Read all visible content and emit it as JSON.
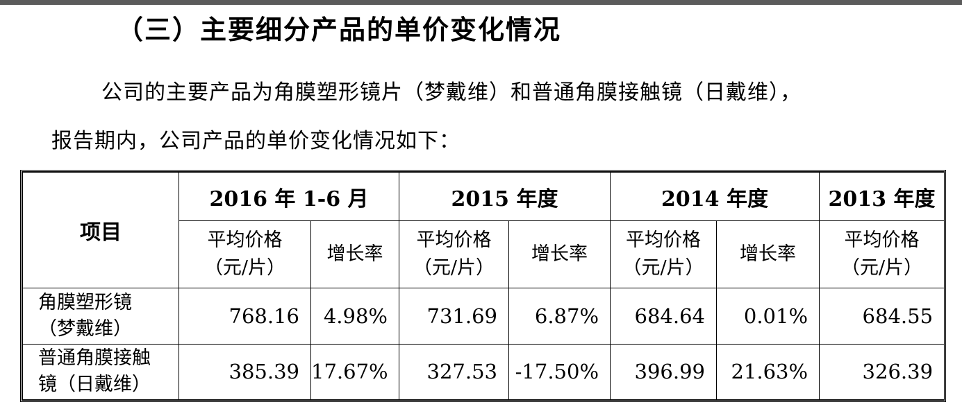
{
  "heading": "（三）主要细分产品的单价变化情况",
  "paragraph": {
    "line1": "公司的主要产品为角膜塑形镜片（梦戴维）和普通角膜接触镜（日戴维），",
    "line2": "报告期内，公司产品的单价变化情况如下："
  },
  "table": {
    "item_header": "项目",
    "periods": [
      "2016 年 1-6 月",
      "2015 年度",
      "2014 年度",
      "2013 年度"
    ],
    "price_header": {
      "line1": "平均价格",
      "line2": "（元/片）"
    },
    "growth_header": "增长率",
    "rows": [
      {
        "label_line1": "角膜塑形镜",
        "label_line2": "（梦戴维）",
        "values": [
          "768.16",
          "4.98%",
          "731.69",
          "6.87%",
          "684.64",
          "0.01%",
          "684.55"
        ]
      },
      {
        "label_line1": "普通角膜接触",
        "label_line2": "镜（日戴维）",
        "values": [
          "385.39",
          "17.67%",
          "327.53",
          "-17.50%",
          "396.99",
          "21.63%",
          "326.39"
        ]
      }
    ]
  }
}
